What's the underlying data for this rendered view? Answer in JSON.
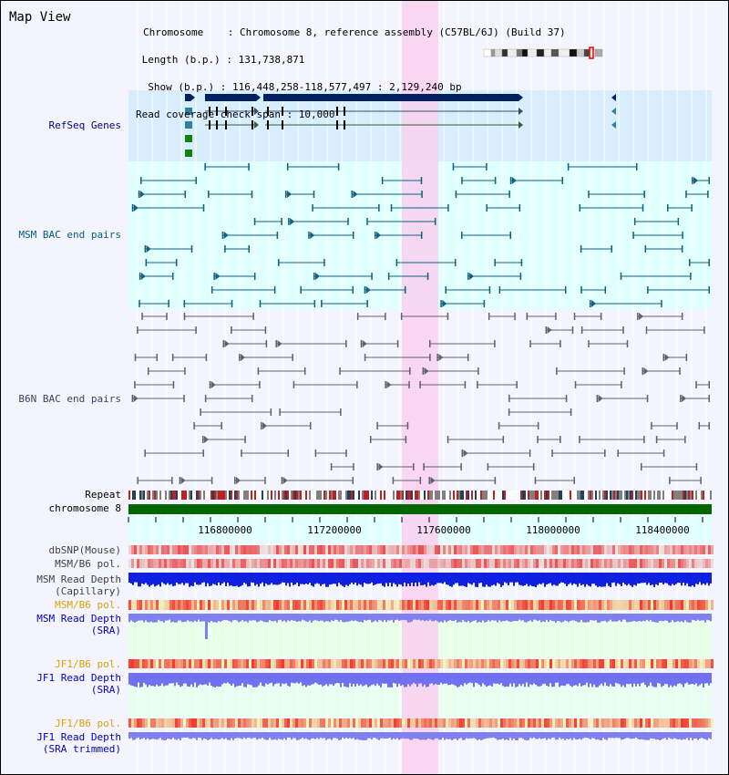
{
  "title": "Map View",
  "header": {
    "lines": [
      "Chromosome    : Chromosome 8, reference assembly (C57BL/6J) (Build 37)",
      " Length (b.p.) : 131,738,871",
      "  Show (b.p.) : 116,448,258-118,577,497 : 2,129,240 bp",
      "Read coverage check span : 10,000"
    ]
  },
  "tracks": {
    "refseq": "RefSeq Genes",
    "msm_bac": "MSM BAC end pairs",
    "b6n_bac": "B6N BAC end pairs",
    "repeat": "Repeat",
    "chromosome": "chromosome 8",
    "dbsnp": "dbSNP(Mouse)",
    "msm_b6_pol_1": "MSM/B6 pol.",
    "msm_read_depth_cap_1": "MSM Read Depth",
    "msm_read_depth_cap_2": "(Capillary)",
    "msm_b6_pol_2": "MSM/B6 pol.",
    "msm_read_depth_sra_1": "MSM Read Depth",
    "msm_read_depth_sra_2": "(SRA)",
    "jf1_b6_pol_1": "JF1/B6 pol.",
    "jf1_read_depth_sra_1": "JF1 Read Depth",
    "jf1_read_depth_sra_2": "(SRA)",
    "jf1_b6_pol_2": "JF1/B6 pol.",
    "jf1_read_depth_trim_1": "JF1 Read Depth",
    "jf1_read_depth_trim_2": "(SRA trimmed)"
  },
  "ruler": {
    "ticks": [
      "116800000",
      "117200000",
      "117600000",
      "118000000",
      "118400000"
    ]
  },
  "colors": {
    "refseq_label": "#000080",
    "msm_label": "#006080",
    "b6n_label": "#404060",
    "orange_label": "#e0a000",
    "blue_label": "#0000c0",
    "highlight": "#f9d0f0",
    "chromosome_bar": "#006600",
    "refseq_bg": "#d8eeff",
    "msm_bg": "#e0ffff"
  }
}
